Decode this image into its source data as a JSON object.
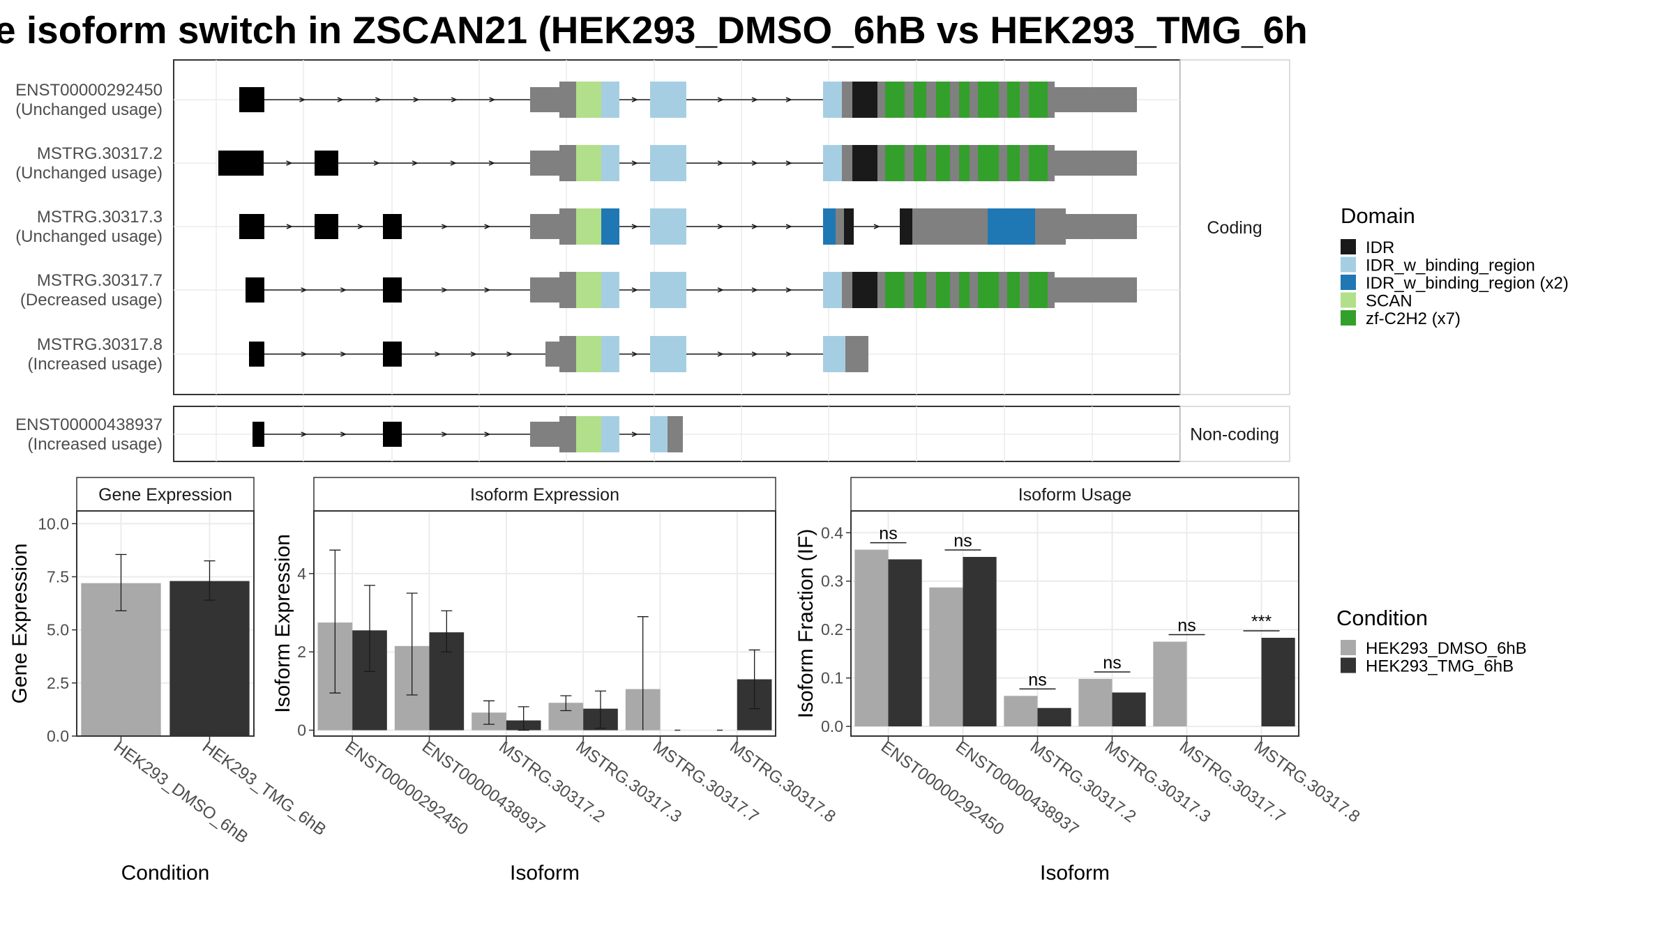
{
  "title": "e isoform switch in ZSCAN21 (HEK293_DMSO_6hB vs HEK293_TMG_6h",
  "colors": {
    "IDR": "#1a1a1a",
    "IDR_w_binding_region": "#a6cee3",
    "IDR_w_binding_region_x2": "#1f78b4",
    "SCAN": "#b2df8a",
    "zf-C2H2": "#33a02c",
    "exon": "#808080",
    "dmso": "#a9a9a9",
    "tmg": "#333333"
  },
  "structure_panel": {
    "facets": [
      "Coding",
      "Non-coding"
    ],
    "isoforms": [
      {
        "name": "ENST00000292450",
        "usage": "(Unchanged usage)",
        "facet": "Coding"
      },
      {
        "name": "MSTRG.30317.2",
        "usage": "(Unchanged usage)",
        "facet": "Coding"
      },
      {
        "name": "MSTRG.30317.3",
        "usage": "(Unchanged usage)",
        "facet": "Coding"
      },
      {
        "name": "MSTRG.30317.7",
        "usage": "(Decreased usage)",
        "facet": "Coding"
      },
      {
        "name": "MSTRG.30317.8",
        "usage": "(Increased usage)",
        "facet": "Coding"
      },
      {
        "name": "ENST00000438937",
        "usage": "(Increased usage)",
        "facet": "Non-coding"
      }
    ],
    "legend_title": "Domain",
    "legend": [
      {
        "label": "IDR",
        "color_key": "IDR"
      },
      {
        "label": "IDR_w_binding_region",
        "color_key": "IDR_w_binding_region"
      },
      {
        "label": "IDR_w_binding_region (x2)",
        "color_key": "IDR_w_binding_region_x2"
      },
      {
        "label": "SCAN",
        "color_key": "SCAN"
      },
      {
        "label": "zf-C2H2 (x7)",
        "color_key": "zf-C2H2"
      }
    ]
  },
  "condition_legend": {
    "title": "Condition",
    "items": [
      {
        "label": "HEK293_DMSO_6hB",
        "color_key": "dmso"
      },
      {
        "label": "HEK293_TMG_6hB",
        "color_key": "tmg"
      }
    ]
  },
  "chart_data": [
    {
      "type": "bar",
      "title": "Gene Expression",
      "xlabel": "Condition",
      "ylabel": "Gene Expression",
      "ylim": [
        0,
        10.6
      ],
      "yticks": [
        "0.0",
        "2.5",
        "5.0",
        "7.5",
        "10.0"
      ],
      "categories": [
        "HEK293_DMSO_6hB",
        "HEK293_TMG_6hB"
      ],
      "values": [
        7.2,
        7.3
      ],
      "error_low": [
        5.9,
        6.4
      ],
      "error_high": [
        8.55,
        8.25
      ]
    },
    {
      "type": "bar",
      "title": "Isoform Expression",
      "xlabel": "Isoform",
      "ylabel": "Isoform Expression",
      "ylim": [
        -0.15,
        5.6
      ],
      "yticks": [
        "0",
        "2",
        "4"
      ],
      "categories": [
        "ENST00000292450",
        "ENST00000438937",
        "MSTRG.30317.2",
        "MSTRG.30317.3",
        "MSTRG.30317.7",
        "MSTRG.30317.8"
      ],
      "series": [
        {
          "name": "HEK293_DMSO_6hB",
          "values": [
            2.75,
            2.15,
            0.45,
            0.7,
            1.05,
            0.0
          ],
          "error_low": [
            0.95,
            0.9,
            0.15,
            0.5,
            null,
            null
          ],
          "error_high": [
            4.6,
            3.5,
            0.75,
            0.88,
            null,
            null
          ]
        },
        {
          "name": "HEK293_TMG_6hB",
          "values": [
            2.55,
            2.5,
            0.25,
            0.55,
            0.0,
            1.3
          ],
          "error_low": [
            1.5,
            2.0,
            0.0,
            0.05,
            null,
            0.55
          ],
          "error_high": [
            3.7,
            3.05,
            0.6,
            1.0,
            null,
            2.05
          ]
        }
      ],
      "extra_errorbars": [
        {
          "category_index": 4,
          "series_index": 0,
          "low": 0.0,
          "high": 2.9
        }
      ]
    },
    {
      "type": "bar",
      "title": "Isoform Usage",
      "xlabel": "Isoform",
      "ylabel": "Isoform Fraction (IF)",
      "ylim": [
        -0.02,
        0.445
      ],
      "yticks": [
        "0.0",
        "0.1",
        "0.2",
        "0.3",
        "0.4"
      ],
      "categories": [
        "ENST00000292450",
        "ENST00000438937",
        "MSTRG.30317.2",
        "MSTRG.30317.3",
        "MSTRG.30317.7",
        "MSTRG.30317.8"
      ],
      "series": [
        {
          "name": "HEK293_DMSO_6hB",
          "values": [
            0.365,
            0.287,
            0.063,
            0.098,
            0.175,
            0.0
          ]
        },
        {
          "name": "HEK293_TMG_6hB",
          "values": [
            0.345,
            0.35,
            0.038,
            0.07,
            0.0,
            0.183
          ]
        }
      ],
      "significance": [
        "ns",
        "ns",
        "ns",
        "ns",
        "ns",
        "***"
      ]
    }
  ]
}
